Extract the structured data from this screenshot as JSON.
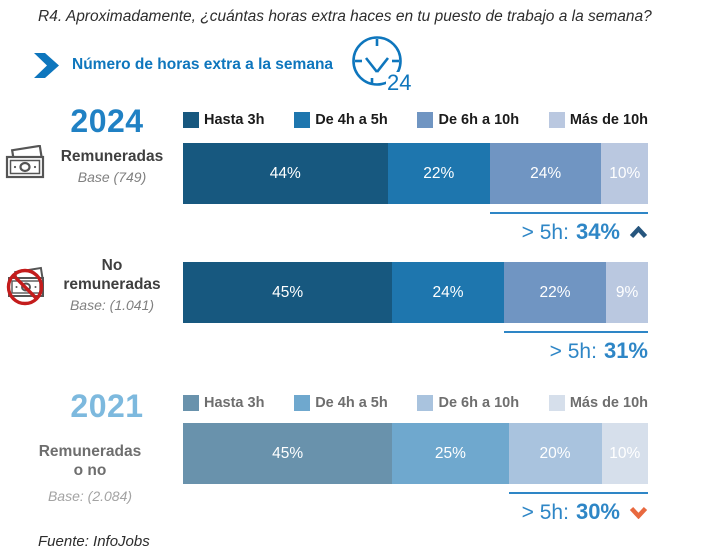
{
  "header": {
    "question": "R4. Aproximadamente, ¿cuántas horas extra haces en tu puesto de trabajo a la semana?",
    "subtitle": "Número de horas extra a la semana",
    "clock_label": "24"
  },
  "colors": {
    "accent_blue": "#0e76bd",
    "year_2024": "#2081c4",
    "year_2021": "#7db9de",
    "summary_blue": "#2e86c6",
    "trend_up": "#27567e",
    "trend_down": "#e8693f",
    "palette_2024": [
      "#17587f",
      "#1e76ae",
      "#7095c2",
      "#bac8e0"
    ],
    "palette_2021": [
      "#6992ac",
      "#6fa8ce",
      "#a9c3de",
      "#d6dfeb"
    ]
  },
  "chart_data": {
    "type": "bar",
    "stacked": true,
    "orientation": "horizontal",
    "unit": "%",
    "legend_position": "top",
    "categories": [
      "Hasta 3h",
      "De 4h a 5h",
      "De 6h a 10h",
      "Más de 10h"
    ],
    "groups": [
      {
        "year": "2024",
        "rows": [
          {
            "label": "Remuneradas",
            "base": "Base (749)",
            "values": [
              44,
              22,
              24,
              10
            ],
            "summary_label": "> 5h:",
            "summary_value": "34%",
            "trend": "up"
          },
          {
            "label": "No remuneradas",
            "base": "Base: (1.041)",
            "values": [
              45,
              24,
              22,
              9
            ],
            "summary_label": "> 5h:",
            "summary_value": "31%",
            "trend": "none"
          }
        ]
      },
      {
        "year": "2021",
        "rows": [
          {
            "label": "Remuneradas o no",
            "base": "Base: (2.084)",
            "values": [
              45,
              25,
              20,
              10
            ],
            "summary_label": "> 5h:",
            "summary_value": "30%",
            "trend": "down"
          }
        ]
      }
    ]
  },
  "footer": {
    "source": "Fuente: InfoJobs"
  }
}
